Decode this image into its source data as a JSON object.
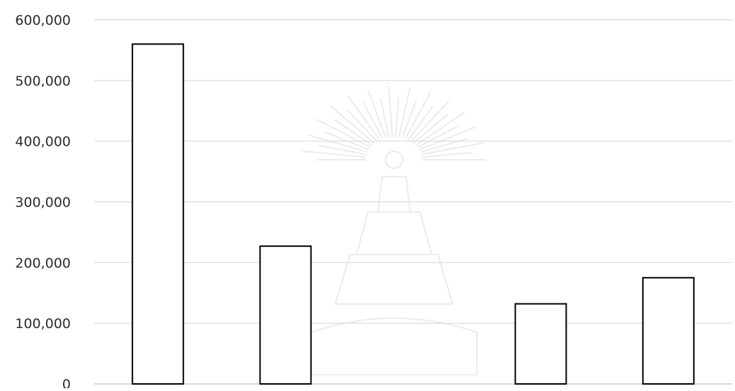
{
  "chart_data": {
    "type": "bar",
    "categories": [
      "",
      "",
      "",
      "",
      ""
    ],
    "values": [
      560000,
      227000,
      null,
      132000,
      175000
    ],
    "ylim": [
      0,
      600000
    ],
    "y_ticks": [
      "0",
      "100,000",
      "200,000",
      "300,000",
      "400,000",
      "500,000",
      "600,000"
    ],
    "y_tick_values": [
      0,
      100000,
      200000,
      300000,
      400000,
      500000,
      600000
    ],
    "grid": true,
    "legend": "none",
    "bar_fill": "#ffffff",
    "bar_stroke": "#000000",
    "grid_color": "#d9d9d9"
  },
  "watermark": {
    "description_icon": "university-emblem-watermark"
  }
}
